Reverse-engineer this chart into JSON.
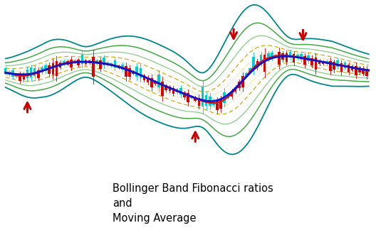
{
  "background_color": "#ffffff",
  "text_annotation": "Bollinger Band Fibonacci ratios\nand\nMoving Average",
  "text_fontsize": 10.5,
  "arrow_color": "#cc0000",
  "candle_up_color": "#00cccc",
  "candle_down_color": "#dd0000",
  "ma_blue_color": "#1111cc",
  "ma_red_color": "#cc1111",
  "ma_blue_dot_color": "#7777ff",
  "band_outer_color": "#008888",
  "band_mid_color": "#44aa44",
  "band_inner_color": "#88cc88",
  "band_dot_outer_color": "#ccaa00",
  "band_dot_inner_color": "#ddcc55"
}
